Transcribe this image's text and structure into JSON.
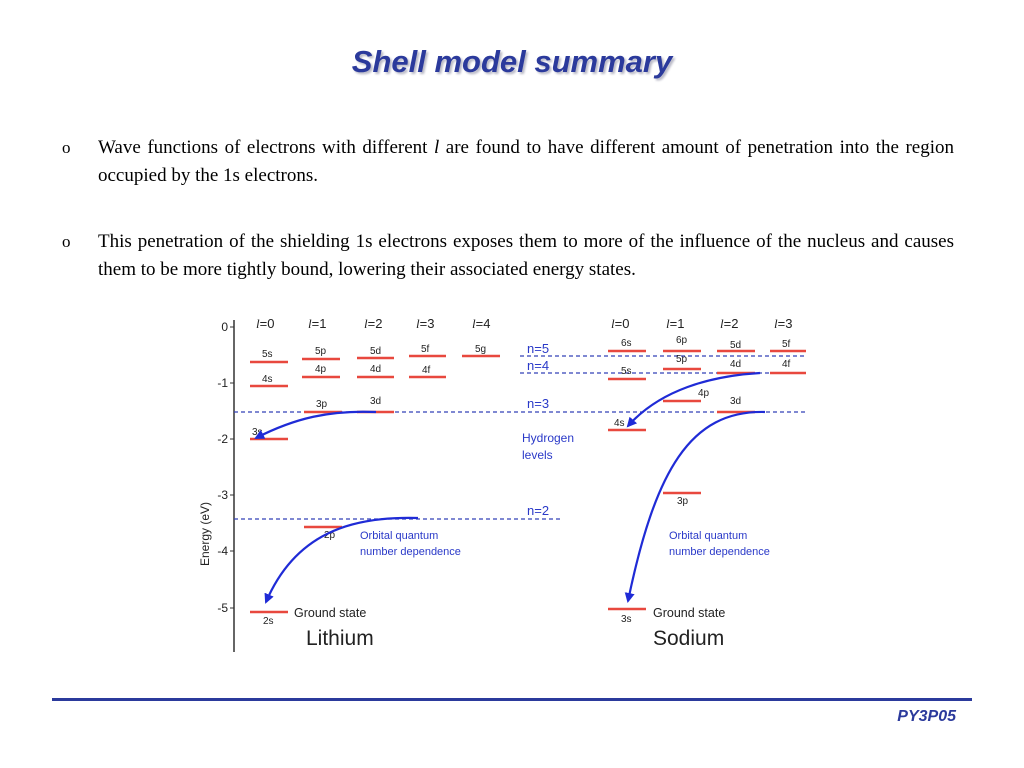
{
  "slide": {
    "title": "Shell model summary",
    "footer": "PY3P05"
  },
  "bullets": {
    "marker": "o",
    "b1_part1": "Wave functions of electrons with different ",
    "b1_italic": "l",
    "b1_part2": " are found to have different amount of penetration into the region occupied by the 1s electrons.",
    "b2": "This penetration of the shielding 1s electrons exposes them to more of the influence of the nucleus and causes them to be more tightly bound, lowering their associated energy states."
  },
  "diagram": {
    "axis_label": "Energy (eV)",
    "axis_ticks": [
      "0",
      "-1",
      "-2",
      "-3",
      "-4",
      "-5"
    ],
    "l_symbol": "l",
    "lithium": {
      "name": "Lithium",
      "columns": [
        "=0",
        "=1",
        "=2",
        "=3",
        "=4"
      ],
      "levels": [
        "5s",
        "4s",
        "5p",
        "4p",
        "3p",
        "5d",
        "4d",
        "3d",
        "5f",
        "4f",
        "5g",
        "3s",
        "2p",
        "2s"
      ],
      "ground_state": "Ground state",
      "note_line1": "Orbital quantum",
      "note_line2": "number dependence"
    },
    "hydrogen": {
      "levels": [
        "n=5",
        "n=4",
        "n=3",
        "n=2"
      ],
      "label_line1": "Hydrogen",
      "label_line2": "levels"
    },
    "sodium": {
      "name": "Sodium",
      "columns": [
        "=0",
        "=1",
        "=2",
        "=3"
      ],
      "levels": [
        "6s",
        "5s",
        "4s",
        "3s",
        "6p",
        "5p",
        "4p",
        "3p",
        "5d",
        "4d",
        "3d",
        "5f",
        "4f"
      ],
      "ground_state": "Ground state",
      "note_line1": "Orbital quantum",
      "note_line2": "number dependence"
    },
    "colors": {
      "level": "#e8483e",
      "hydrogen": "#3340b8",
      "arrow": "#1f2bd6",
      "text_blue": "#2a39c8"
    }
  }
}
